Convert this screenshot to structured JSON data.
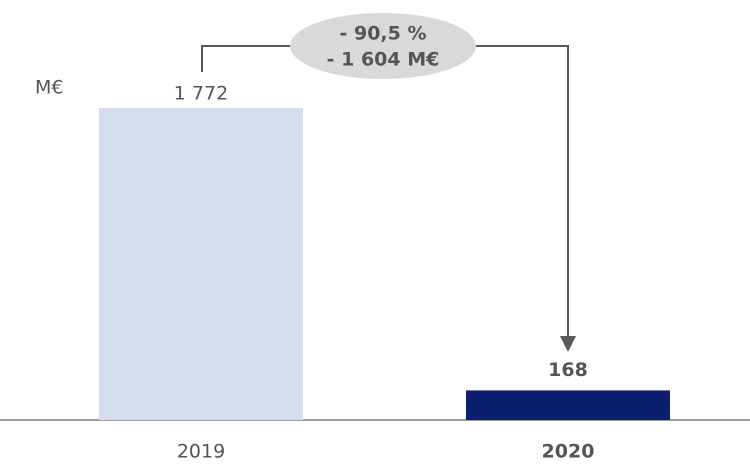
{
  "chart_data": {
    "type": "bar",
    "unit": "M€",
    "categories": [
      "2019",
      "2020"
    ],
    "values": [
      1772,
      168
    ],
    "value_labels": [
      "1 772",
      "168"
    ],
    "colors": [
      "#d6dcf0",
      "#0a1f6e"
    ],
    "annotations": [
      "- 90,5 %",
      "- 1 604 M€"
    ]
  }
}
